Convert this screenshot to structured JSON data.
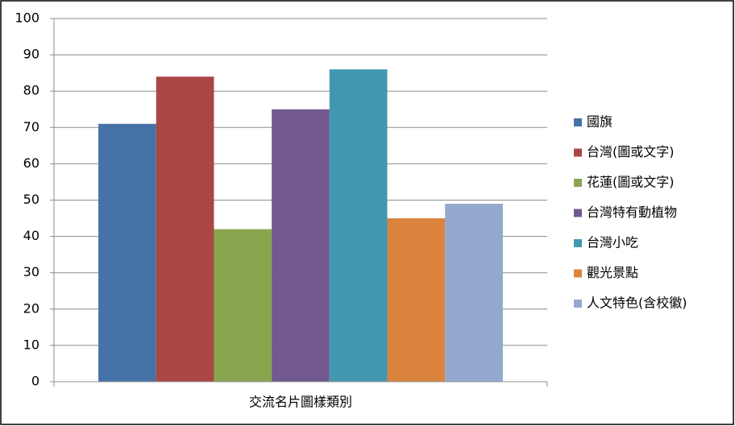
{
  "chart_data": {
    "type": "bar",
    "categories": [
      "交流名片圖樣類別"
    ],
    "series": [
      {
        "name": "國旗",
        "color": "#4572a7",
        "values": [
          71
        ]
      },
      {
        "name": "台灣(圖或文字)",
        "color": "#aa4643",
        "values": [
          84
        ]
      },
      {
        "name": "花蓮(圖或文字)",
        "color": "#89a54e",
        "values": [
          42
        ]
      },
      {
        "name": "台灣特有動植物",
        "color": "#71588f",
        "values": [
          75
        ]
      },
      {
        "name": "台灣小吃",
        "color": "#4198af",
        "values": [
          86
        ]
      },
      {
        "name": "觀光景點",
        "color": "#db843d",
        "values": [
          45
        ]
      },
      {
        "name": "人文特色(含校徽)",
        "color": "#93a9cf",
        "values": [
          49
        ]
      }
    ],
    "ylim": [
      0,
      100
    ],
    "yticks": [
      0,
      10,
      20,
      30,
      40,
      50,
      60,
      70,
      80,
      90,
      100
    ],
    "grid": true,
    "legend": "right"
  }
}
